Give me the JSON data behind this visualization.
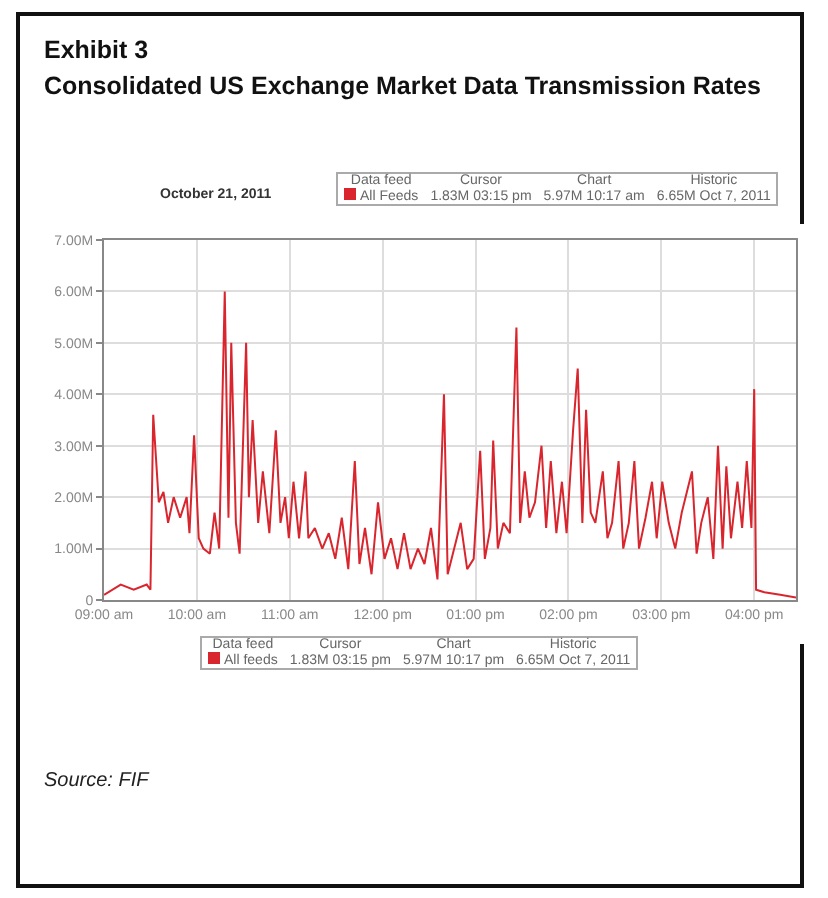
{
  "chart_data": {
    "type": "line",
    "title": "Exhibit 3",
    "subtitle": "Consolidated US Exchange Market Data Transmission Rates",
    "annotations": [
      "October 21, 2011",
      "Data feed",
      "Cursor",
      "Chart",
      "Historic",
      "All Feeds",
      "1.83M 03:15 pm",
      "5.97M 10:17 am",
      "6.65M Oct 7, 2011",
      "Data feed",
      "Cursor",
      "Chart",
      "Historic",
      "All feeds",
      "1.83M 03:15 pm",
      "5.97M 10:17 pm",
      "6.65M Oct 7, 2011",
      "Source: FIF"
    ],
    "x": [
      9.0,
      9.18,
      9.32,
      9.46,
      9.5,
      9.53,
      9.59,
      9.64,
      9.69,
      9.75,
      9.82,
      9.89,
      9.92,
      9.97,
      10.02,
      10.07,
      10.14,
      10.19,
      10.24,
      10.3,
      10.34,
      10.37,
      10.42,
      10.46,
      10.53,
      10.56,
      10.6,
      10.66,
      10.71,
      10.78,
      10.85,
      10.9,
      10.95,
      10.99,
      11.04,
      11.1,
      11.17,
      11.2,
      11.27,
      11.35,
      11.42,
      11.49,
      11.56,
      11.63,
      11.7,
      11.75,
      11.81,
      11.88,
      11.95,
      12.02,
      12.09,
      12.16,
      12.23,
      12.3,
      12.38,
      12.45,
      12.52,
      12.59,
      12.66,
      12.7,
      12.77,
      12.84,
      12.91,
      12.98,
      13.05,
      13.1,
      13.16,
      13.19,
      13.24,
      13.3,
      13.37,
      13.44,
      13.48,
      13.53,
      13.58,
      13.64,
      13.71,
      13.76,
      13.81,
      13.87,
      13.93,
      13.98,
      14.05,
      14.1,
      14.15,
      14.19,
      14.24,
      14.29,
      14.37,
      14.42,
      14.47,
      14.54,
      14.59,
      14.65,
      14.71,
      14.76,
      14.83,
      14.9,
      14.95,
      15.01,
      15.08,
      15.15,
      15.22,
      15.33,
      15.38,
      15.43,
      15.5,
      15.56,
      15.61,
      15.66,
      15.7,
      15.75,
      15.82,
      15.87,
      15.92,
      15.97,
      16.0,
      16.02,
      16.11,
      16.28,
      16.45
    ],
    "series": [
      {
        "color": "#d9262e",
        "values": [
          0.1,
          0.3,
          0.2,
          0.3,
          0.2,
          3.6,
          1.9,
          2.1,
          1.5,
          2.0,
          1.6,
          2.0,
          1.3,
          3.2,
          1.2,
          1.0,
          0.9,
          1.7,
          1.0,
          6.0,
          1.6,
          5.0,
          1.5,
          0.9,
          5.0,
          2.0,
          3.5,
          1.5,
          2.5,
          1.3,
          3.3,
          1.5,
          2.0,
          1.2,
          2.3,
          1.2,
          2.5,
          1.2,
          1.4,
          1.0,
          1.3,
          0.8,
          1.6,
          0.6,
          2.7,
          0.7,
          1.4,
          0.5,
          1.9,
          0.8,
          1.2,
          0.6,
          1.3,
          0.6,
          1.0,
          0.7,
          1.4,
          0.4,
          4.0,
          0.5,
          1.0,
          1.5,
          0.6,
          0.8,
          2.9,
          0.8,
          1.4,
          3.1,
          1.0,
          1.5,
          1.3,
          5.3,
          1.5,
          2.5,
          1.6,
          1.9,
          3.0,
          1.4,
          2.7,
          1.3,
          2.3,
          1.3,
          3.3,
          4.5,
          1.5,
          3.7,
          1.7,
          1.5,
          2.5,
          1.2,
          1.5,
          2.7,
          1.0,
          1.5,
          2.7,
          1.0,
          1.6,
          2.3,
          1.2,
          2.3,
          1.5,
          1.0,
          1.7,
          2.5,
          0.9,
          1.5,
          2.0,
          0.8,
          3.0,
          1.0,
          2.6,
          1.2,
          2.3,
          1.4,
          2.7,
          1.4,
          4.1,
          0.2,
          0.15,
          0.1,
          0.05
        ]
      }
    ],
    "xlim": [
      9,
      16.45
    ],
    "xticks": [
      {
        "value": 9,
        "label": "09:00 am"
      },
      {
        "value": 10,
        "label": "10:00 am"
      },
      {
        "value": 11,
        "label": "11:00 am"
      },
      {
        "value": 12,
        "label": "12:00 pm"
      },
      {
        "value": 13,
        "label": "01:00 pm"
      },
      {
        "value": 14,
        "label": "02:00 pm"
      },
      {
        "value": 15,
        "label": "03:00 pm"
      },
      {
        "value": 16,
        "label": "04:00 pm"
      }
    ],
    "ylim": [
      0,
      7
    ],
    "yticks": [
      0,
      {
        "value": 1,
        "label": "1.00M"
      },
      {
        "value": 2,
        "label": "2.00M"
      },
      {
        "value": 3,
        "label": "3.00M"
      },
      {
        "value": 4,
        "label": "4.00M"
      },
      {
        "value": 5,
        "label": "5.00M"
      },
      {
        "value": 6,
        "label": "6.00M"
      },
      {
        "value": 7,
        "label": "7.00M"
      }
    ],
    "grid": true,
    "marker": "none",
    "line_style": "solid"
  }
}
